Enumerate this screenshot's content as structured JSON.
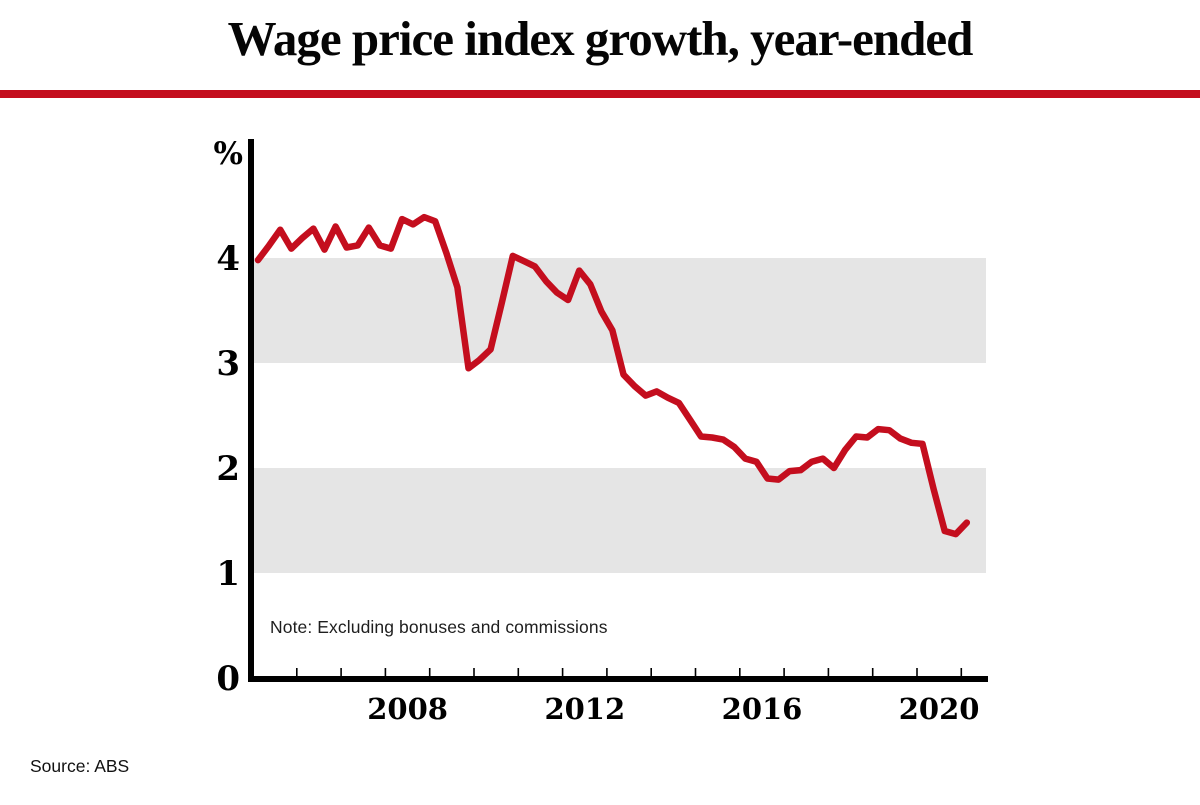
{
  "page": {
    "title": "Wage price index growth, year-ended",
    "note": "Note: Excluding bonuses and commissions",
    "source": "Source: ABS"
  },
  "chart_data": {
    "type": "line",
    "title": "Wage price index growth, year-ended",
    "note": "Note: Excluding bonuses and commissions",
    "source": "Source: ABS",
    "ylabel": "%",
    "xlabel": "",
    "grid": "off",
    "legend": "none",
    "y_ticks": [
      0,
      1,
      2,
      3,
      4
    ],
    "ylim": [
      0,
      5.13
    ],
    "x_tick_years": [
      2006,
      2007,
      2008,
      2009,
      2010,
      2011,
      2012,
      2013,
      2014,
      2015,
      2016,
      2017,
      2018,
      2019,
      2020,
      2021
    ],
    "x_label_years": [
      2008,
      2012,
      2016,
      2020
    ],
    "xlim": [
      2004.9,
      2021.6
    ],
    "shaded_bands": [
      [
        1,
        2
      ],
      [
        3,
        4
      ]
    ],
    "colors": {
      "line": "#c40e1e",
      "rule": "#c40e1e",
      "band": "#e5e5e5",
      "axis": "#000000",
      "text": "#000000"
    },
    "series": [
      {
        "name": "Wage price index growth, year-ended (%)",
        "frequency": "quarterly",
        "x_start": 2005.125,
        "x_step": 0.25,
        "values": [
          3.98,
          4.12,
          4.27,
          4.09,
          4.19,
          4.28,
          4.08,
          4.3,
          4.1,
          4.12,
          4.29,
          4.12,
          4.09,
          4.37,
          4.32,
          4.39,
          4.35,
          4.05,
          3.72,
          2.95,
          3.03,
          3.13,
          3.57,
          4.02,
          3.97,
          3.92,
          3.78,
          3.67,
          3.6,
          3.88,
          3.75,
          3.49,
          3.31,
          2.89,
          2.78,
          2.69,
          2.73,
          2.67,
          2.62,
          2.46,
          2.3,
          2.29,
          2.27,
          2.2,
          2.09,
          2.06,
          1.9,
          1.89,
          1.97,
          1.98,
          2.06,
          2.09,
          2.0,
          2.17,
          2.3,
          2.29,
          2.37,
          2.36,
          2.28,
          2.24,
          2.23,
          1.8,
          1.4,
          1.37,
          1.48
        ]
      }
    ]
  }
}
